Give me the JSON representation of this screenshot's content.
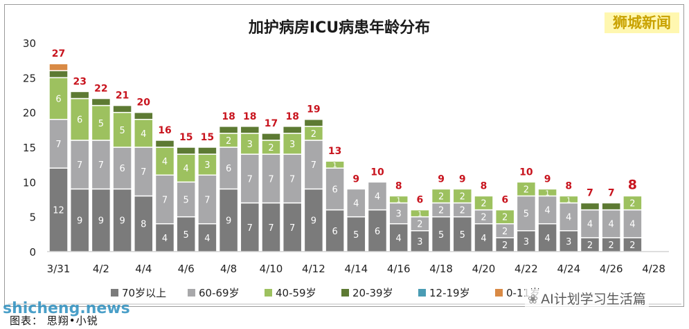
{
  "brand_label": "狮城新闻",
  "caption": "图表： 思翔•小锐",
  "watermark": "shicheng.news",
  "wechat_label": "AI计划学习生活篇",
  "icons": {
    "wechat": "wechat-icon"
  },
  "chart_data": {
    "type": "bar",
    "stacked": true,
    "title": "加护病房ICU病患年龄分布",
    "xlabel": "",
    "ylabel": "",
    "ylim": [
      0,
      30
    ],
    "yticks": [
      0,
      5,
      10,
      15,
      20,
      25,
      30
    ],
    "grid": false,
    "legend_position": "bottom",
    "categories": [
      "3/31",
      "4/1",
      "4/2",
      "4/3",
      "4/4",
      "4/5",
      "4/6",
      "4/7",
      "4/8",
      "4/9",
      "4/10",
      "4/11",
      "4/12",
      "4/13",
      "4/14",
      "4/15",
      "4/16",
      "4/17",
      "4/18",
      "4/19",
      "4/20",
      "4/21",
      "4/22",
      "4/23",
      "4/24",
      "4/25",
      "4/26",
      "4/27"
    ],
    "xtick_labels": [
      "3/31",
      "4/2",
      "4/4",
      "4/6",
      "4/8",
      "4/10",
      "4/12",
      "4/14",
      "4/16",
      "4/18",
      "4/20",
      "4/22",
      "4/24",
      "4/26",
      "4/28"
    ],
    "series": [
      {
        "name": "70岁以上",
        "color": "#7b7b7b",
        "values": [
          12,
          9,
          9,
          9,
          8,
          4,
          5,
          4,
          9,
          7,
          7,
          7,
          9,
          6,
          5,
          6,
          4,
          3,
          5,
          5,
          4,
          2,
          3,
          4,
          3,
          2,
          2,
          2
        ]
      },
      {
        "name": "60-69岁",
        "color": "#a8a8aa",
        "values": [
          7,
          7,
          7,
          6,
          7,
          7,
          5,
          7,
          6,
          7,
          7,
          7,
          7,
          6,
          4,
          4,
          3,
          2,
          2,
          2,
          2,
          2,
          5,
          4,
          4,
          4,
          4,
          4
        ]
      },
      {
        "name": "40-59岁",
        "color": "#9dc15f",
        "values": [
          6,
          6,
          5,
          5,
          4,
          4,
          4,
          3,
          2,
          3,
          2,
          3,
          2,
          1,
          0,
          0,
          1,
          1,
          2,
          2,
          2,
          2,
          2,
          1,
          1,
          0,
          0,
          2
        ]
      },
      {
        "name": "20-39岁",
        "color": "#5d7a33",
        "values": [
          1,
          1,
          1,
          1,
          1,
          1,
          1,
          1,
          1,
          1,
          1,
          1,
          1,
          0,
          0,
          0,
          0,
          0,
          0,
          0,
          0,
          0,
          0,
          0,
          0,
          1,
          1,
          0
        ]
      },
      {
        "name": "12-19岁",
        "color": "#4a9cb4",
        "values": [
          0,
          0,
          0,
          0,
          0,
          0,
          0,
          0,
          0,
          0,
          0,
          0,
          0,
          0,
          0,
          0,
          0,
          0,
          0,
          0,
          0,
          0,
          0,
          0,
          0,
          0,
          0,
          0
        ]
      },
      {
        "name": "0-11岁",
        "color": "#d98a45",
        "values": [
          1,
          0,
          0,
          0,
          0,
          0,
          0,
          0,
          0,
          0,
          0,
          0,
          0,
          0,
          0,
          0,
          0,
          0,
          0,
          0,
          0,
          0,
          0,
          0,
          0,
          0,
          0,
          0
        ]
      }
    ],
    "totals": [
      27,
      23,
      22,
      21,
      20,
      16,
      15,
      15,
      18,
      18,
      17,
      18,
      19,
      13,
      9,
      10,
      8,
      6,
      9,
      9,
      8,
      6,
      10,
      9,
      8,
      7,
      7,
      8
    ],
    "total_label_color": "#c8141e"
  }
}
